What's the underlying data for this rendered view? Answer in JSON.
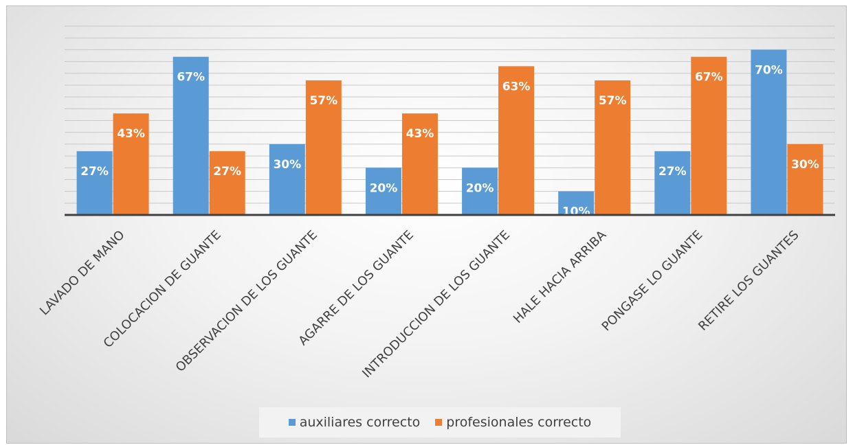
{
  "chart_data": {
    "type": "bar",
    "title": "",
    "xlabel": "",
    "ylabel": "",
    "ylim": [
      0,
      70
    ],
    "grid": true,
    "legend_position": "bottom",
    "categories": [
      "LAVADO DE MANO",
      "COLOCACION DE GUANTE",
      "OBSERVACION DE LOS GUANTE",
      "AGARRE DE LOS GUANTE",
      "INTRODUCCION DE LOS GUANTE",
      "HALE HACIA ARRIBA",
      "PONGASE LO GUANTE",
      "RETIRE LOS GUANTES"
    ],
    "series": [
      {
        "name": "auxiliares correcto",
        "color": "#5b9bd5",
        "values": [
          27,
          67,
          30,
          20,
          20,
          10,
          27,
          70
        ],
        "labels": [
          "27%",
          "67%",
          "30%",
          "20%",
          "20%",
          "10%",
          "27%",
          "70%"
        ]
      },
      {
        "name": "profesionales correcto",
        "color": "#ed7d31",
        "values": [
          43,
          27,
          57,
          43,
          63,
          57,
          67,
          30
        ],
        "labels": [
          "43%",
          "27%",
          "57%",
          "43%",
          "63%",
          "57%",
          "67%",
          "30%"
        ]
      }
    ]
  }
}
